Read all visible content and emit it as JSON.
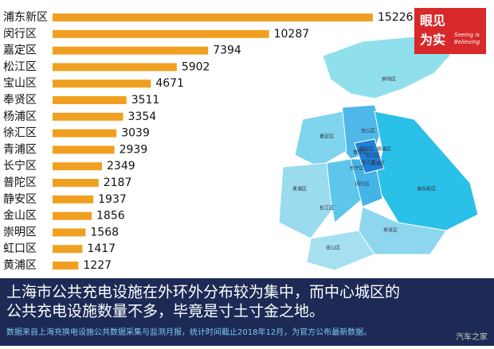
{
  "chart_data": {
    "type": "bar",
    "orientation": "horizontal",
    "categories": [
      "浦东新区",
      "闵行区",
      "嘉定区",
      "松江区",
      "宝山区",
      "奉贤区",
      "杨浦区",
      "徐汇区",
      "青浦区",
      "长宁区",
      "普陀区",
      "静安区",
      "金山区",
      "崇明区",
      "虹口区",
      "黄浦区"
    ],
    "values": [
      15226,
      10287,
      7394,
      5902,
      4671,
      3511,
      3354,
      3039,
      2939,
      2349,
      2187,
      1937,
      1856,
      1568,
      1417,
      1227
    ],
    "color": "#f0a020"
  },
  "map": {
    "labels": [
      "崇明区",
      "宝山区",
      "嘉定区",
      "青浦区",
      "松江区",
      "金山区",
      "奉贤区",
      "浦东新区",
      "闵行区",
      "长宁区",
      "徐汇区",
      "普陀区",
      "杨浦区",
      "静安区",
      "虹口区",
      "黄浦区"
    ]
  },
  "logo": {
    "title_top": "眼见",
    "title_bottom": "为实",
    "slogan_1": "Seeing is",
    "slogan_2": "Believing"
  },
  "caption": {
    "line_1": "上海市公共充电设施在外环外分布较为集中，而中心城区的",
    "line_2": "公共充电设施数量不多，毕竟是寸土寸金之地。",
    "source": "数据来自上海充换电设施公共数据采集与监测月报，统计时间截止2018年12月，为官方公布最新数据。"
  },
  "watermark": "汽车之家"
}
